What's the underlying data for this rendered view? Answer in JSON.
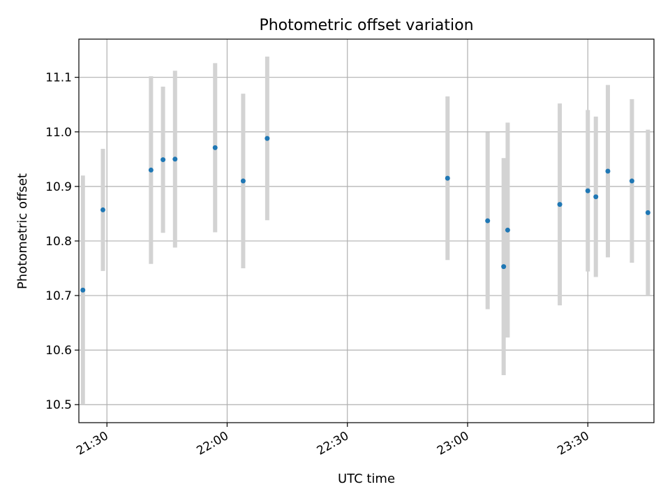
{
  "chart_data": {
    "type": "scatter",
    "title": "Photometric offset variation",
    "xlabel": "UTC time",
    "ylabel": "Photometric offset",
    "xlim": [
      "21:23",
      "23:46:30"
    ],
    "ylim": [
      10.467,
      11.17
    ],
    "x_ticks": [
      "21:30",
      "22:00",
      "22:30",
      "23:00",
      "23:30"
    ],
    "y_ticks": [
      "10.5",
      "10.6",
      "10.7",
      "10.8",
      "10.9",
      "11.0",
      "11.1"
    ],
    "grid": true,
    "point_color": "#1f77b4",
    "errorbar_color": "#d3d3d3",
    "points": [
      {
        "t": "21:24",
        "y": 10.71,
        "err": 0.21
      },
      {
        "t": "21:29",
        "y": 10.857,
        "err": 0.112
      },
      {
        "t": "21:41",
        "y": 10.93,
        "err": 0.172
      },
      {
        "t": "21:44",
        "y": 10.949,
        "err": 0.134
      },
      {
        "t": "21:47",
        "y": 10.95,
        "err": 0.162
      },
      {
        "t": "21:57",
        "y": 10.971,
        "err": 0.155
      },
      {
        "t": "22:04",
        "y": 10.91,
        "err": 0.16
      },
      {
        "t": "22:10",
        "y": 10.988,
        "err": 0.15
      },
      {
        "t": "22:55",
        "y": 10.915,
        "err": 0.15
      },
      {
        "t": "23:05",
        "y": 10.837,
        "err": 0.162
      },
      {
        "t": "23:09",
        "y": 10.753,
        "err": 0.199
      },
      {
        "t": "23:10",
        "y": 10.82,
        "err": 0.197
      },
      {
        "t": "23:23",
        "y": 10.867,
        "err": 0.185
      },
      {
        "t": "23:30",
        "y": 10.892,
        "err": 0.148
      },
      {
        "t": "23:32",
        "y": 10.881,
        "err": 0.147
      },
      {
        "t": "23:35",
        "y": 10.928,
        "err": 0.158
      },
      {
        "t": "23:41",
        "y": 10.91,
        "err": 0.15
      },
      {
        "t": "23:45",
        "y": 10.852,
        "err": 0.152
      }
    ]
  }
}
